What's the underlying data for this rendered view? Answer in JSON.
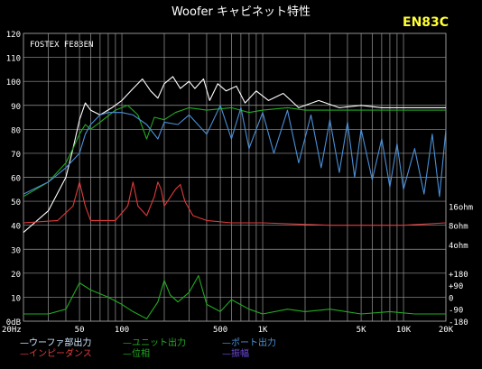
{
  "title": "Woofer キャビネット特性",
  "badge": "EN83C",
  "colors": {
    "background": "#000000",
    "grid": "#9a9a9a",
    "label": "#ffffff",
    "badge": "#ffff33",
    "woofer": "#ffffff",
    "unit": "#22aa22",
    "port": "#4a8fd6",
    "impedance": "#e03a3a",
    "phase": "#22aa22",
    "amplitude": "#6a4ad6",
    "woofer_legend": "#cfe8ff"
  },
  "chart_data": {
    "type": "line",
    "title": "Woofer キャビネット特性",
    "annotation": "FOSTEX FE83EN",
    "x_scale": "log",
    "xlim": [
      20,
      20000
    ],
    "ylim": [
      0,
      120
    ],
    "grid": true,
    "y_left_ticks": [
      "0dB",
      "10",
      "20",
      "30",
      "40",
      "50",
      "60",
      "70",
      "80",
      "90",
      "100",
      "110",
      "120"
    ],
    "x_ticks": [
      {
        "value": 20,
        "label": "20Hz"
      },
      {
        "value": 50,
        "label": "50"
      },
      {
        "value": 100,
        "label": "100"
      },
      {
        "value": 500,
        "label": "500"
      },
      {
        "value": 1000,
        "label": "1K"
      },
      {
        "value": 5000,
        "label": "5K"
      },
      {
        "value": 10000,
        "label": "10K"
      },
      {
        "value": 20000,
        "label": "20K"
      }
    ],
    "y_right_ticks": [
      {
        "value": 48,
        "label": "16ohm"
      },
      {
        "value": 40,
        "label": "8ohm"
      },
      {
        "value": 32,
        "label": "4ohm"
      },
      {
        "value": 20,
        "label": "+180"
      },
      {
        "value": 15,
        "label": "+90"
      },
      {
        "value": 10,
        "label": "0"
      },
      {
        "value": 5,
        "label": "-90"
      },
      {
        "value": 0,
        "label": "-180"
      }
    ],
    "series": [
      {
        "name": "ウーファ部出力",
        "color": "#ffffff",
        "points": [
          [
            20,
            37
          ],
          [
            30,
            46
          ],
          [
            40,
            60
          ],
          [
            45,
            72
          ],
          [
            50,
            84
          ],
          [
            55,
            91
          ],
          [
            60,
            88
          ],
          [
            70,
            86
          ],
          [
            85,
            89
          ],
          [
            100,
            92
          ],
          [
            120,
            97
          ],
          [
            140,
            101
          ],
          [
            160,
            96
          ],
          [
            180,
            93
          ],
          [
            200,
            99
          ],
          [
            230,
            102
          ],
          [
            260,
            97
          ],
          [
            300,
            100
          ],
          [
            330,
            97
          ],
          [
            380,
            101
          ],
          [
            420,
            92
          ],
          [
            480,
            99
          ],
          [
            550,
            96
          ],
          [
            650,
            98
          ],
          [
            750,
            91
          ],
          [
            900,
            96
          ],
          [
            1100,
            92
          ],
          [
            1400,
            95
          ],
          [
            1800,
            89
          ],
          [
            2500,
            92
          ],
          [
            3500,
            89
          ],
          [
            5000,
            90
          ],
          [
            7000,
            89
          ],
          [
            10000,
            89
          ],
          [
            14000,
            89
          ],
          [
            20000,
            89
          ]
        ]
      },
      {
        "name": "ユニット出力",
        "color": "#22aa22",
        "points": [
          [
            20,
            52
          ],
          [
            30,
            58
          ],
          [
            40,
            66
          ],
          [
            45,
            72
          ],
          [
            50,
            78
          ],
          [
            55,
            82
          ],
          [
            60,
            80
          ],
          [
            70,
            83
          ],
          [
            90,
            88
          ],
          [
            110,
            90
          ],
          [
            130,
            86
          ],
          [
            150,
            76
          ],
          [
            170,
            85
          ],
          [
            200,
            84
          ],
          [
            240,
            87
          ],
          [
            300,
            89
          ],
          [
            400,
            88
          ],
          [
            600,
            89
          ],
          [
            800,
            87
          ],
          [
            1000,
            88
          ],
          [
            1500,
            89
          ],
          [
            2000,
            88
          ],
          [
            3000,
            88
          ],
          [
            5000,
            88
          ],
          [
            7000,
            88
          ],
          [
            10000,
            88
          ],
          [
            14000,
            88
          ],
          [
            20000,
            88
          ]
        ]
      },
      {
        "name": "ポート出力",
        "color": "#4a8fd6",
        "points": [
          [
            20,
            53
          ],
          [
            30,
            58
          ],
          [
            40,
            64
          ],
          [
            50,
            70
          ],
          [
            55,
            78
          ],
          [
            60,
            82
          ],
          [
            70,
            86
          ],
          [
            80,
            87
          ],
          [
            100,
            87
          ],
          [
            120,
            86
          ],
          [
            150,
            82
          ],
          [
            180,
            76
          ],
          [
            200,
            83
          ],
          [
            250,
            82
          ],
          [
            300,
            86
          ],
          [
            400,
            78
          ],
          [
            500,
            90
          ],
          [
            600,
            76
          ],
          [
            700,
            89
          ],
          [
            800,
            72
          ],
          [
            1000,
            87
          ],
          [
            1200,
            70
          ],
          [
            1500,
            88
          ],
          [
            1800,
            66
          ],
          [
            2200,
            86
          ],
          [
            2600,
            64
          ],
          [
            3000,
            84
          ],
          [
            3500,
            62
          ],
          [
            4000,
            83
          ],
          [
            4500,
            60
          ],
          [
            5000,
            80
          ],
          [
            6000,
            59
          ],
          [
            7000,
            76
          ],
          [
            8000,
            56
          ],
          [
            9000,
            74
          ],
          [
            10000,
            55
          ],
          [
            12000,
            72
          ],
          [
            14000,
            53
          ],
          [
            16000,
            78
          ],
          [
            18000,
            52
          ],
          [
            20000,
            80
          ]
        ]
      },
      {
        "name": "インピーダンス",
        "color": "#e03a3a",
        "points": [
          [
            20,
            41
          ],
          [
            35,
            42
          ],
          [
            45,
            48
          ],
          [
            50,
            58
          ],
          [
            55,
            48
          ],
          [
            60,
            42
          ],
          [
            90,
            42
          ],
          [
            110,
            48
          ],
          [
            120,
            58
          ],
          [
            130,
            48
          ],
          [
            150,
            44
          ],
          [
            170,
            52
          ],
          [
            180,
            58
          ],
          [
            190,
            55
          ],
          [
            200,
            48
          ],
          [
            240,
            55
          ],
          [
            260,
            57
          ],
          [
            280,
            50
          ],
          [
            320,
            44
          ],
          [
            400,
            42
          ],
          [
            600,
            41
          ],
          [
            1000,
            41
          ],
          [
            3000,
            40
          ],
          [
            10000,
            40
          ],
          [
            20000,
            41
          ]
        ]
      },
      {
        "name": "位相",
        "color": "#22aa22",
        "points": [
          [
            20,
            3
          ],
          [
            30,
            3
          ],
          [
            40,
            5
          ],
          [
            50,
            16
          ],
          [
            60,
            13
          ],
          [
            80,
            10
          ],
          [
            100,
            7
          ],
          [
            120,
            4
          ],
          [
            150,
            1
          ],
          [
            180,
            8
          ],
          [
            200,
            17
          ],
          [
            220,
            11
          ],
          [
            250,
            8
          ],
          [
            300,
            12
          ],
          [
            350,
            19
          ],
          [
            400,
            7
          ],
          [
            500,
            4
          ],
          [
            600,
            9
          ],
          [
            800,
            5
          ],
          [
            1000,
            3
          ],
          [
            1500,
            5
          ],
          [
            2000,
            4
          ],
          [
            3000,
            5
          ],
          [
            5000,
            3
          ],
          [
            8000,
            4
          ],
          [
            12000,
            3
          ],
          [
            20000,
            3
          ]
        ]
      }
    ]
  },
  "legend": [
    {
      "label": "ウーファ部出力",
      "color": "#ffffff"
    },
    {
      "label": "ユニット出力",
      "color": "#22aa22"
    },
    {
      "label": "ポート出力",
      "color": "#4a8fd6"
    },
    {
      "label": "インピーダンス",
      "color": "#e03a3a"
    },
    {
      "label": "位相",
      "color": "#22aa22"
    },
    {
      "label": "振幅",
      "color": "#6a4ad6"
    }
  ]
}
